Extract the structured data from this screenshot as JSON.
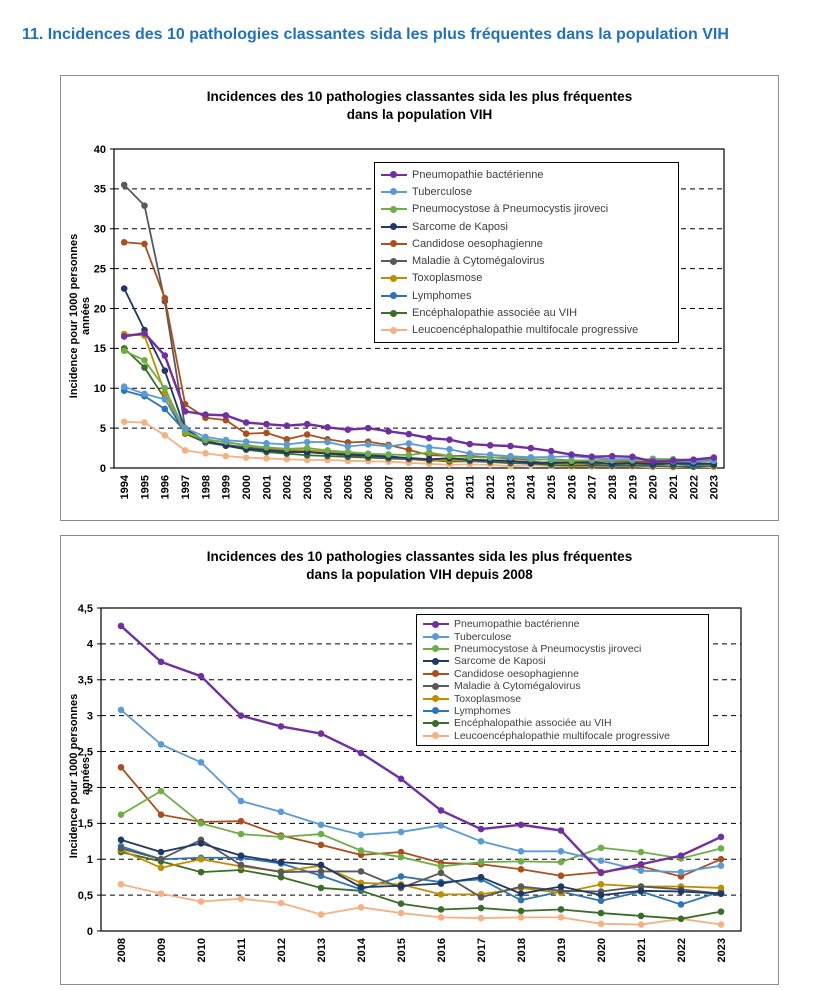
{
  "page": {
    "heading": "11. Incidences des 10 pathologies classantes sida les plus fréquentes dans la population VIH"
  },
  "colors": {
    "heading_blue": "#2272B9",
    "axis_and_grid": "#000000",
    "legend_text": "#3F3F3F",
    "figure_border": "#8C8C8C"
  },
  "chart_data": [
    {
      "type": "line",
      "title_line1": "Incidences des 10 pathologies classantes sida les plus fréquentes",
      "title_line2": "dans la population VIH",
      "ylabel": "Incidence pour 1000 personnes années",
      "ylim": [
        0,
        40
      ],
      "ytick_step": 5,
      "grid": "horizontal-dashed",
      "legend_position": "inside-upper-right",
      "decimal_comma": true,
      "x": [
        "1994",
        "1995",
        "1996",
        "1997",
        "1998",
        "1999",
        "2000",
        "2001",
        "2002",
        "2003",
        "2004",
        "2005",
        "2006",
        "2007",
        "2008",
        "2009",
        "2010",
        "2011",
        "2012",
        "2013",
        "2014",
        "2015",
        "2016",
        "2017",
        "2018",
        "2019",
        "2020",
        "2021",
        "2022",
        "2023"
      ],
      "series": [
        {
          "name": "Pneumopathie bactérienne",
          "color": "#7030A0",
          "values": [
            16.5,
            16.9,
            14.1,
            7.1,
            6.7,
            6.6,
            5.7,
            5.5,
            5.3,
            5.5,
            5.1,
            4.8,
            5.0,
            4.6,
            4.25,
            3.75,
            3.55,
            3.0,
            2.85,
            2.75,
            2.48,
            2.12,
            1.68,
            1.42,
            1.48,
            1.4,
            0.81,
            0.93,
            1.05,
            1.31
          ]
        },
        {
          "name": "Tuberculose",
          "color": "#5B9BD5",
          "values": [
            10.2,
            9.3,
            8.6,
            5.0,
            3.9,
            3.5,
            3.3,
            3.1,
            2.95,
            3.25,
            3.25,
            2.7,
            2.95,
            2.7,
            3.08,
            2.6,
            2.35,
            1.81,
            1.66,
            1.48,
            1.34,
            1.38,
            1.47,
            1.25,
            1.11,
            1.11,
            0.98,
            0.84,
            0.82,
            0.91
          ]
        },
        {
          "name": "Pneumocystose à Pneumocystis jiroveci",
          "color": "#70AD47",
          "values": [
            14.7,
            13.5,
            10.0,
            4.6,
            3.5,
            3.3,
            2.8,
            2.6,
            2.4,
            2.5,
            2.2,
            2.0,
            1.8,
            1.7,
            1.62,
            1.95,
            1.5,
            1.35,
            1.31,
            1.35,
            1.12,
            1.03,
            0.9,
            0.96,
            0.97,
            0.96,
            1.16,
            1.1,
            1.01,
            1.15
          ]
        },
        {
          "name": "Sarcome de Kaposi",
          "color": "#1F3864",
          "values": [
            22.5,
            17.3,
            12.2,
            4.8,
            3.4,
            2.8,
            2.4,
            2.2,
            2.0,
            2.0,
            1.8,
            1.7,
            1.6,
            1.4,
            1.27,
            1.1,
            1.22,
            1.05,
            0.96,
            0.92,
            0.61,
            0.63,
            0.66,
            0.75,
            0.52,
            0.62,
            0.5,
            0.56,
            0.55,
            0.52
          ]
        },
        {
          "name": "Candidose oesophagienne",
          "color": "#A9501E",
          "values": [
            28.3,
            28.1,
            21.3,
            8.0,
            6.3,
            6.0,
            4.3,
            4.4,
            3.6,
            4.2,
            3.6,
            3.2,
            3.3,
            2.9,
            2.28,
            1.62,
            1.52,
            1.53,
            1.33,
            1.2,
            1.06,
            1.1,
            0.95,
            0.93,
            0.86,
            0.77,
            0.82,
            0.9,
            0.76,
            1.0
          ]
        },
        {
          "name": "Maladie à Cytomégalovirus",
          "color": "#595959",
          "values": [
            35.5,
            32.9,
            20.9,
            5.0,
            3.3,
            2.9,
            2.6,
            2.3,
            2.1,
            2.0,
            1.8,
            1.6,
            1.5,
            1.3,
            1.15,
            1.0,
            1.27,
            0.92,
            0.82,
            0.83,
            0.83,
            0.6,
            0.81,
            0.47,
            0.62,
            0.56,
            0.55,
            0.62,
            0.58,
            0.52
          ]
        },
        {
          "name": "Toxoplasmose",
          "color": "#BF8F00",
          "values": [
            16.8,
            16.6,
            9.4,
            4.4,
            3.6,
            3.2,
            2.9,
            2.5,
            2.3,
            2.2,
            2.0,
            1.8,
            1.6,
            1.4,
            1.13,
            0.88,
            1.0,
            0.9,
            0.83,
            0.91,
            0.67,
            0.65,
            0.51,
            0.51,
            0.6,
            0.53,
            0.65,
            0.62,
            0.62,
            0.6
          ]
        },
        {
          "name": "Lymphomes",
          "color": "#2E75B6",
          "values": [
            9.7,
            9.0,
            7.4,
            4.6,
            3.3,
            2.9,
            2.5,
            2.3,
            2.2,
            2.1,
            2.0,
            1.9,
            1.7,
            1.5,
            1.18,
            1.0,
            1.02,
            1.02,
            0.94,
            0.77,
            0.58,
            0.76,
            0.68,
            0.72,
            0.43,
            0.55,
            0.42,
            0.55,
            0.37,
            0.55
          ]
        },
        {
          "name": "Encéphalopathie associée au VIH",
          "color": "#3A6D28",
          "values": [
            15.0,
            12.6,
            8.7,
            4.3,
            3.2,
            2.8,
            2.3,
            2.0,
            1.8,
            1.6,
            1.5,
            1.4,
            1.3,
            1.2,
            1.1,
            0.97,
            0.82,
            0.85,
            0.75,
            0.6,
            0.56,
            0.38,
            0.3,
            0.32,
            0.28,
            0.3,
            0.25,
            0.21,
            0.17,
            0.27
          ]
        },
        {
          "name": "Leucoencéphalopathie multifocale progressive",
          "color": "#F4B183",
          "values": [
            5.8,
            5.7,
            4.1,
            2.2,
            1.85,
            1.5,
            1.3,
            1.2,
            1.1,
            1.0,
            1.0,
            0.9,
            0.85,
            0.8,
            0.65,
            0.52,
            0.41,
            0.45,
            0.39,
            0.23,
            0.33,
            0.25,
            0.19,
            0.18,
            0.19,
            0.19,
            0.1,
            0.09,
            0.17,
            0.09
          ]
        }
      ]
    },
    {
      "type": "line",
      "title_line1": "Incidences des 10 pathologies classantes sida les plus fréquentes",
      "title_line2": "dans la population VIH depuis 2008",
      "ylabel": "Incidence pour 1000 personnes années",
      "ylim": [
        0,
        4.5
      ],
      "ytick_step": 0.5,
      "grid": "horizontal-dashed",
      "legend_position": "inside-upper-right",
      "decimal_comma": true,
      "x": [
        "2008",
        "2009",
        "2010",
        "2011",
        "2012",
        "2013",
        "2014",
        "2015",
        "2016",
        "2017",
        "2018",
        "2019",
        "2020",
        "2021",
        "2022",
        "2023"
      ],
      "series": [
        {
          "name": "Pneumopathie bactérienne",
          "color": "#7030A0",
          "values": [
            4.25,
            3.75,
            3.55,
            3.0,
            2.85,
            2.75,
            2.48,
            2.12,
            1.68,
            1.42,
            1.48,
            1.4,
            0.81,
            0.93,
            1.05,
            1.31
          ]
        },
        {
          "name": "Tuberculose",
          "color": "#5B9BD5",
          "values": [
            3.08,
            2.6,
            2.35,
            1.81,
            1.66,
            1.48,
            1.34,
            1.38,
            1.47,
            1.25,
            1.11,
            1.11,
            0.98,
            0.84,
            0.82,
            0.91
          ]
        },
        {
          "name": "Pneumocystose à Pneumocystis jiroveci",
          "color": "#70AD47",
          "values": [
            1.62,
            1.95,
            1.5,
            1.35,
            1.31,
            1.35,
            1.12,
            1.03,
            0.9,
            0.96,
            0.97,
            0.96,
            1.16,
            1.1,
            1.01,
            1.15
          ]
        },
        {
          "name": "Sarcome de Kaposi",
          "color": "#1F3864",
          "values": [
            1.27,
            1.1,
            1.22,
            1.05,
            0.96,
            0.92,
            0.61,
            0.63,
            0.66,
            0.75,
            0.52,
            0.62,
            0.5,
            0.56,
            0.55,
            0.52
          ]
        },
        {
          "name": "Candidose oesophagienne",
          "color": "#A9501E",
          "values": [
            2.28,
            1.62,
            1.52,
            1.53,
            1.33,
            1.2,
            1.06,
            1.1,
            0.95,
            0.93,
            0.86,
            0.77,
            0.82,
            0.9,
            0.76,
            1.0
          ]
        },
        {
          "name": "Maladie à Cytomégalovirus",
          "color": "#595959",
          "values": [
            1.15,
            1.0,
            1.27,
            0.92,
            0.82,
            0.83,
            0.83,
            0.6,
            0.81,
            0.47,
            0.62,
            0.56,
            0.55,
            0.62,
            0.58,
            0.52
          ]
        },
        {
          "name": "Toxoplasmose",
          "color": "#BF8F00",
          "values": [
            1.13,
            0.88,
            1.0,
            0.9,
            0.83,
            0.91,
            0.67,
            0.65,
            0.51,
            0.51,
            0.6,
            0.53,
            0.65,
            0.62,
            0.62,
            0.6
          ]
        },
        {
          "name": "Lymphomes",
          "color": "#2E75B6",
          "values": [
            1.18,
            1.0,
            1.02,
            1.02,
            0.94,
            0.77,
            0.58,
            0.76,
            0.68,
            0.72,
            0.43,
            0.55,
            0.42,
            0.55,
            0.37,
            0.55
          ]
        },
        {
          "name": "Encéphalopathie associée au VIH",
          "color": "#3A6D28",
          "values": [
            1.1,
            0.97,
            0.82,
            0.85,
            0.75,
            0.6,
            0.56,
            0.38,
            0.3,
            0.32,
            0.28,
            0.3,
            0.25,
            0.21,
            0.17,
            0.27
          ]
        },
        {
          "name": "Leucoencéphalopathie multifocale progressive",
          "color": "#F4B183",
          "values": [
            0.65,
            0.52,
            0.41,
            0.45,
            0.39,
            0.23,
            0.33,
            0.25,
            0.19,
            0.18,
            0.19,
            0.19,
            0.1,
            0.09,
            0.17,
            0.09
          ]
        }
      ]
    }
  ]
}
